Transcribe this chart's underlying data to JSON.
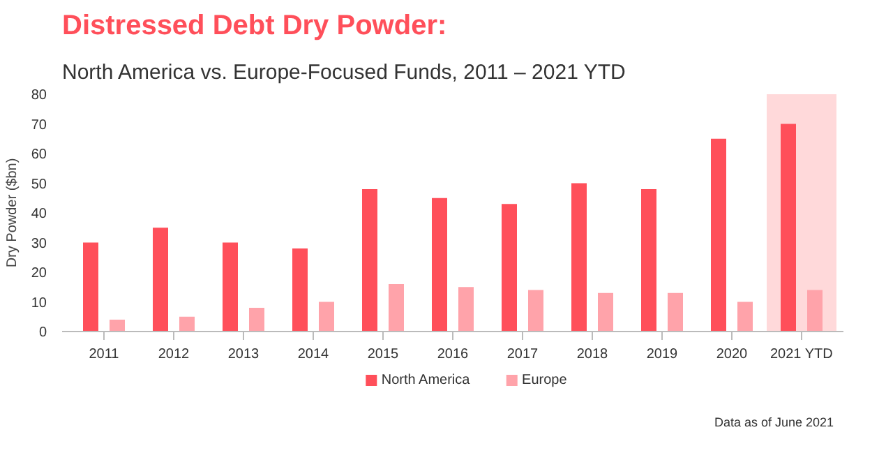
{
  "chart_data": {
    "type": "bar",
    "title": "Distressed Debt Dry Powder:",
    "subtitle": "North America vs. Europe-Focused Funds, 2011 – 2021 YTD",
    "ylabel": "Dry Powder ($bn)",
    "categories": [
      "2011",
      "2012",
      "2013",
      "2014",
      "2015",
      "2016",
      "2017",
      "2018",
      "2019",
      "2020",
      "2021 YTD"
    ],
    "series": [
      {
        "name": "North America",
        "color": "#ff4f5a",
        "values": [
          30,
          35,
          30,
          28,
          48,
          45,
          43,
          50,
          48,
          65,
          70
        ]
      },
      {
        "name": "Europe",
        "color": "#ffa3aa",
        "values": [
          4,
          5,
          8,
          10,
          16,
          15,
          14,
          13,
          13,
          10,
          14
        ]
      }
    ],
    "ylim": [
      0,
      80
    ],
    "yticks": [
      0,
      10,
      20,
      30,
      40,
      50,
      60,
      70,
      80
    ],
    "grid": false,
    "legend": "bottom",
    "bands": [
      {
        "axis": "x",
        "from": "2021 YTD",
        "to": "2021 YTD",
        "color": "#ffd9da"
      }
    ],
    "annotations": [
      "Data as of June 2021"
    ]
  }
}
